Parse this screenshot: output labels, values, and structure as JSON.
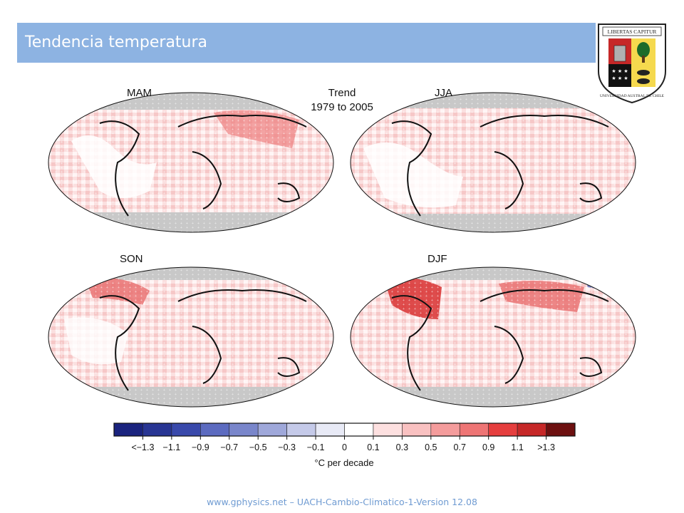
{
  "slide": {
    "title": "Tendencia temperatura",
    "footer": "www.gphysics.net – UACH-Cambio-Climatico-1-Version 12.08"
  },
  "logo": {
    "motto": "LIBERTAS CAPITUR",
    "arc_text": "UNIVERSIDAD AUSTRAL DE CHILE"
  },
  "figure": {
    "trend_title_line1": "Trend",
    "trend_title_line2": "1979 to 2005",
    "panels": [
      {
        "label": "MAM"
      },
      {
        "label": "JJA"
      },
      {
        "label": "SON"
      },
      {
        "label": "DJF"
      }
    ],
    "colorbar": {
      "ticks": [
        "<−1.3",
        "−1.1",
        "−0.9",
        "−0.7",
        "−0.5",
        "−0.3",
        "−0.1",
        "0",
        "0.1",
        "0.3",
        "0.5",
        "0.7",
        "0.9",
        "1.1",
        ">1.3"
      ],
      "colors": [
        "#1a237e",
        "#283593",
        "#3949ab",
        "#5c6bc0",
        "#7986cb",
        "#9fa8da",
        "#c5cae9",
        "#e8eaf6",
        "#ffffff",
        "#fde0e0",
        "#f9c1c1",
        "#f49c9c",
        "#ee7575",
        "#e53e3e",
        "#c62828",
        "#6d1010"
      ],
      "unit": "°C per decade"
    }
  }
}
